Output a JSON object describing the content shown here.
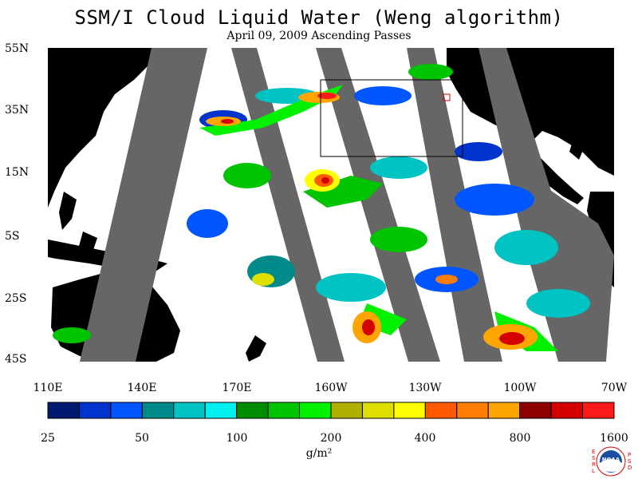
{
  "title": "SSM/I Cloud Liquid Water (Weng algorithm)",
  "subtitle": "April 09, 2009  Ascending Passes",
  "lat_labels": [
    "55N",
    "35N",
    "15N",
    "5S",
    "25S",
    "45S"
  ],
  "lon_labels": [
    "110E",
    "140E",
    "170E",
    "160W",
    "130W",
    "100W",
    "70W"
  ],
  "colorbar": {
    "colors": [
      "#001a70",
      "#0033cc",
      "#0055ff",
      "#008a8a",
      "#00c4c4",
      "#00f0f0",
      "#008c00",
      "#00c400",
      "#00f000",
      "#b0b000",
      "#dede00",
      "#ffff00",
      "#ff5a00",
      "#ff7d00",
      "#ffa500",
      "#8c0000",
      "#d40000",
      "#ff1a1a"
    ],
    "tick_labels": [
      "25",
      "50",
      "100",
      "200",
      "400",
      "800",
      "1600"
    ],
    "unit": "g/m²"
  },
  "map_colors": {
    "land": "#000000",
    "no_data": "#666666",
    "clear": "#ffffff"
  },
  "logo": {
    "letters_left": [
      "E",
      "S",
      "R",
      "L"
    ],
    "letters_right": [
      "P",
      "S",
      "D"
    ],
    "center": "NOAA"
  }
}
